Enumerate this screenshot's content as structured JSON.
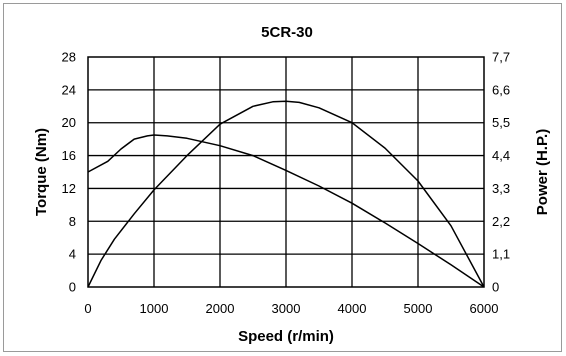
{
  "chart_data": {
    "type": "line",
    "title": "5CR-30",
    "xlabel": "Speed (r/min)",
    "ylabel": "Torque (Nm)",
    "y2label": "Power (H.P.)",
    "xlim": [
      0,
      6000
    ],
    "ylim": [
      0,
      28
    ],
    "y2lim": [
      0,
      7.7
    ],
    "grid": true,
    "xticks": [
      "0",
      "1000",
      "2000",
      "3000",
      "4000",
      "5000",
      "6000"
    ],
    "yticks": [
      "0",
      "4",
      "8",
      "12",
      "16",
      "20",
      "24",
      "28"
    ],
    "y2ticks": [
      "0",
      "1,1",
      "2,2",
      "3,3",
      "4,4",
      "5,5",
      "6,6",
      "7,7"
    ],
    "series": [
      {
        "axis": "left",
        "x": [
          0,
          300,
          500,
          700,
          900,
          1000,
          1200,
          1500,
          2000,
          2500,
          3000,
          3500,
          4000,
          4500,
          5000,
          5500,
          6000
        ],
        "values": [
          14.0,
          15.3,
          16.8,
          18.0,
          18.4,
          18.5,
          18.4,
          18.1,
          17.2,
          16.0,
          14.2,
          12.3,
          10.2,
          7.8,
          5.3,
          2.7,
          0
        ]
      },
      {
        "axis": "right",
        "x": [
          0,
          200,
          400,
          700,
          1000,
          1500,
          2000,
          2500,
          2800,
          3000,
          3200,
          3500,
          4000,
          4500,
          5000,
          5500,
          6000
        ],
        "values": [
          0,
          0.9,
          1.6,
          2.45,
          3.25,
          4.4,
          5.45,
          6.05,
          6.2,
          6.22,
          6.18,
          6.0,
          5.5,
          4.65,
          3.55,
          2.05,
          0
        ]
      }
    ]
  }
}
